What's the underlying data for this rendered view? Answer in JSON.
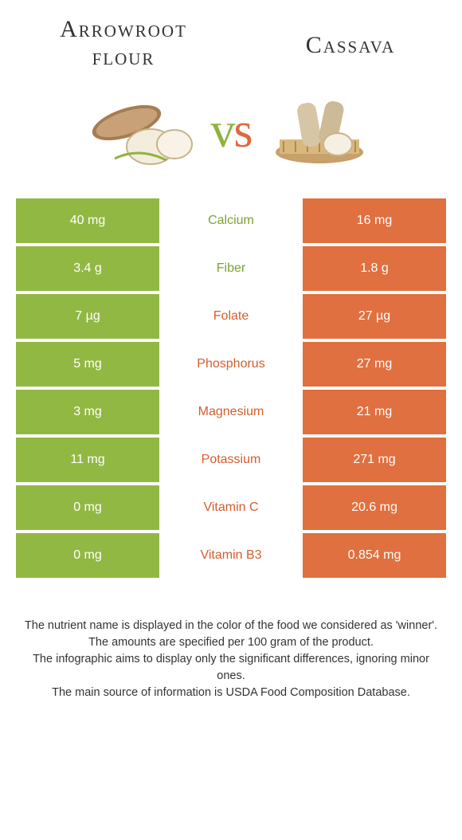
{
  "foods": {
    "left": {
      "title": "Arrowroot flour"
    },
    "right": {
      "title": "Cassava"
    }
  },
  "vs_label": {
    "v": "v",
    "s": "s"
  },
  "colors": {
    "green": "#92b844",
    "orange": "#e0703f",
    "green_text": "#7ca132",
    "orange_text": "#d35e2e"
  },
  "nutrients": [
    {
      "name": "Calcium",
      "left": "40 mg",
      "right": "16 mg",
      "winner": "left"
    },
    {
      "name": "Fiber",
      "left": "3.4 g",
      "right": "1.8 g",
      "winner": "left"
    },
    {
      "name": "Folate",
      "left": "7 µg",
      "right": "27 µg",
      "winner": "right"
    },
    {
      "name": "Phosphorus",
      "left": "5 mg",
      "right": "27 mg",
      "winner": "right"
    },
    {
      "name": "Magnesium",
      "left": "3 mg",
      "right": "21 mg",
      "winner": "right"
    },
    {
      "name": "Potassium",
      "left": "11 mg",
      "right": "271 mg",
      "winner": "right"
    },
    {
      "name": "Vitamin C",
      "left": "0 mg",
      "right": "20.6 mg",
      "winner": "right"
    },
    {
      "name": "Vitamin B3",
      "left": "0 mg",
      "right": "0.854 mg",
      "winner": "right"
    }
  ],
  "footnotes": [
    "The nutrient name is displayed in the color of the food we considered as 'winner'.",
    "The amounts are specified per 100 gram of the product.",
    "The infographic aims to display only the significant differences, ignoring minor ones.",
    "The main source of information is USDA Food Composition Database."
  ]
}
